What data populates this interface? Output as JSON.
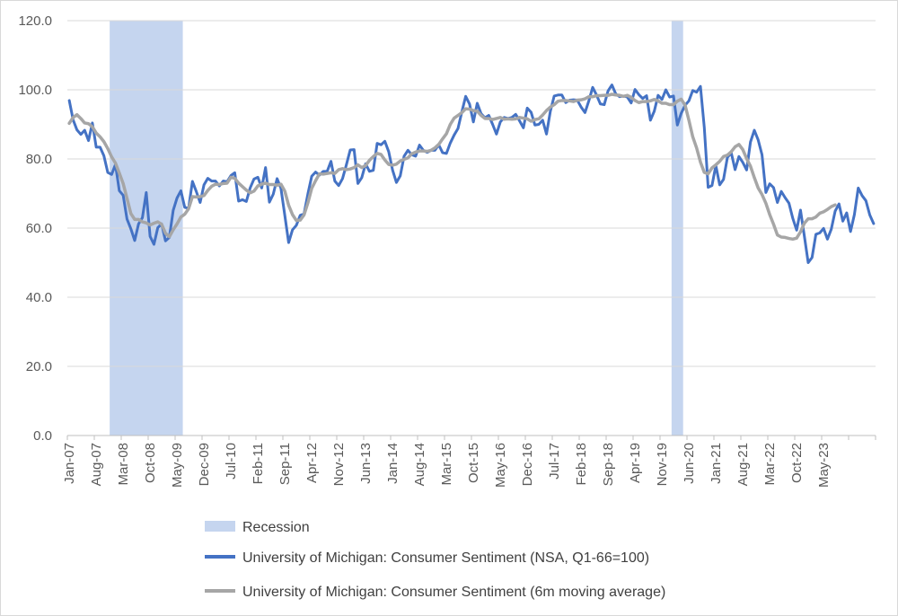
{
  "chart_data": {
    "type": "line",
    "title": "",
    "xlabel": "",
    "ylabel": "",
    "ylim": [
      0,
      120
    ],
    "yticks": [
      "0.0",
      "20.0",
      "40.0",
      "60.0",
      "80.0",
      "100.0",
      "120.0"
    ],
    "x_start": "Jan-07",
    "x_end": "Dec-23",
    "xticks": [
      "Jan-07",
      "Aug-07",
      "Mar-08",
      "Oct-08",
      "May-09",
      "Dec-09",
      "Jul-10",
      "Feb-11",
      "Sep-11",
      "Apr-12",
      "Nov-12",
      "Jun-13",
      "Jan-14",
      "Aug-14",
      "Mar-15",
      "Oct-15",
      "May-16",
      "Dec-16",
      "Jul-17",
      "Feb-18",
      "Sep-18",
      "Apr-19",
      "Nov-19",
      "Jun-20",
      "Jan-21",
      "Aug-21",
      "Mar-22",
      "Oct-22",
      "May-23"
    ],
    "grid": true,
    "legend_position": "bottom",
    "recessions": [
      {
        "start": "Dec-07",
        "end": "Jun-09"
      },
      {
        "start": "Feb-20",
        "end": "Apr-20"
      }
    ],
    "series": [
      {
        "name": "University of Michigan: Consumer Sentiment (NSA, Q1-66=100)",
        "color": "#4472c4",
        "values": [
          96.9,
          91.3,
          88.4,
          87.1,
          88.3,
          85.3,
          90.4,
          83.4,
          83.4,
          80.9,
          76.1,
          75.5,
          78.4,
          70.8,
          69.5,
          62.6,
          59.8,
          56.4,
          61.2,
          63.0,
          70.3,
          57.6,
          55.3,
          60.1,
          61.2,
          56.3,
          57.3,
          65.1,
          68.7,
          70.8,
          66.0,
          65.7,
          73.5,
          70.6,
          67.4,
          72.5,
          74.4,
          73.6,
          73.6,
          72.2,
          73.6,
          73.4,
          75.2,
          76.0,
          67.8,
          68.2,
          67.7,
          71.6,
          74.2,
          74.7,
          71.6,
          77.5,
          67.5,
          69.8,
          74.3,
          71.5,
          63.7,
          55.8,
          59.5,
          60.8,
          63.7,
          64.1,
          69.9,
          75.0,
          76.2,
          75.3,
          76.4,
          76.4,
          79.3,
          73.6,
          72.3,
          74.3,
          78.3,
          82.6,
          82.7,
          72.9,
          74.6,
          78.6,
          76.4,
          76.7,
          84.5,
          84.1,
          85.1,
          82.1,
          76.8,
          73.2,
          75.1,
          80.8,
          82.5,
          81.2,
          80.8,
          84.0,
          82.5,
          81.9,
          82.5,
          82.5,
          84.1,
          81.8,
          81.6,
          84.6,
          86.9,
          88.8,
          93.6,
          98.1,
          95.9,
          90.7,
          96.1,
          93.1,
          91.9,
          92.6,
          90.0,
          87.2,
          90.7,
          92.0,
          91.7,
          92.0,
          92.9,
          91.0,
          89.0,
          94.7,
          93.5,
          89.8,
          90.0,
          91.2,
          87.2,
          93.8,
          98.2,
          98.5,
          98.5,
          96.3,
          97.0,
          97.1,
          97.0,
          95.0,
          93.4,
          96.8,
          100.7,
          98.5,
          95.9,
          95.7,
          99.7,
          101.4,
          98.8,
          98.0,
          98.2,
          97.9,
          96.2,
          100.1,
          98.6,
          97.5,
          98.3,
          91.2,
          93.8,
          98.4,
          97.2,
          100.0,
          97.9,
          98.2,
          89.8,
          93.2,
          95.5,
          96.8,
          99.8,
          99.3,
          101.0,
          89.1,
          71.8,
          72.3,
          78.1,
          72.5,
          74.1,
          80.4,
          81.8,
          76.9,
          80.7,
          79.0,
          76.8,
          84.9,
          88.3,
          85.5,
          81.2,
          70.3,
          72.8,
          71.7,
          67.4,
          70.6,
          68.8,
          67.2,
          62.8,
          59.4,
          65.2,
          57.7,
          50.0,
          51.5,
          58.2,
          58.6,
          59.9,
          56.8,
          59.7,
          64.9,
          67.0,
          62.0,
          64.4,
          59.0,
          63.9,
          71.6,
          69.4,
          67.9,
          63.8,
          61.3
        ]
      },
      {
        "name": "University of Michigan: Consumer Sentiment (6m moving average)",
        "color": "#a6a6a6",
        "values": [
          90.3,
          92.0,
          92.8,
          91.7,
          90.4,
          90.2,
          89.3,
          87.5,
          86.4,
          85.0,
          83.0,
          80.6,
          78.8,
          75.9,
          72.9,
          68.6,
          64.2,
          62.5,
          62.5,
          61.8,
          61.5,
          60.9,
          61.4,
          61.8,
          61.1,
          58.5,
          57.5,
          59.5,
          61.2,
          63.2,
          64.0,
          65.6,
          69.1,
          69.0,
          69.1,
          69.4,
          70.9,
          72.1,
          72.7,
          72.6,
          72.9,
          73.0,
          74.7,
          74.4,
          73.0,
          72.0,
          71.0,
          70.2,
          70.7,
          72.2,
          72.7,
          73.0,
          72.6,
          72.6,
          72.4,
          72.7,
          70.7,
          66.6,
          63.9,
          62.2,
          62.3,
          63.8,
          67.3,
          71.5,
          73.7,
          75.7,
          75.6,
          75.8,
          76.0,
          75.8,
          76.9,
          77.2,
          76.9,
          77.1,
          77.5,
          78.3,
          77.5,
          78.1,
          79.6,
          80.7,
          81.6,
          81.3,
          79.7,
          78.4,
          78.2,
          78.5,
          79.4,
          79.9,
          80.3,
          81.5,
          82.0,
          82.3,
          82.3,
          82.2,
          82.5,
          83.2,
          84.2,
          85.8,
          87.3,
          90.0,
          91.8,
          92.6,
          93.4,
          94.5,
          94.4,
          94.0,
          93.8,
          92.6,
          91.7,
          91.7,
          91.4,
          91.7,
          92.0,
          91.5,
          91.6,
          91.5,
          91.6,
          92.0,
          91.8,
          91.6,
          90.9,
          91.4,
          91.6,
          92.7,
          94.0,
          95.0,
          95.7,
          96.7,
          96.9,
          96.9,
          96.8,
          96.6,
          97.0,
          97.1,
          97.4,
          98.0,
          98.0,
          98.3,
          98.3,
          98.4,
          98.4,
          98.7,
          98.5,
          98.4,
          98.1,
          98.4,
          97.8,
          96.9,
          96.3,
          96.6,
          96.6,
          96.8,
          97.2,
          96.8,
          96.1,
          96.1,
          95.7,
          95.7,
          96.7,
          97.3,
          95.6,
          91.2,
          86.4,
          83.2,
          79.1,
          76.1,
          75.7,
          77.4,
          78.3,
          79.3,
          80.7,
          81.1,
          82.1,
          83.5,
          84.2,
          82.7,
          80.1,
          77.9,
          74.6,
          71.6,
          69.7,
          67.2,
          63.9,
          61.1,
          58.0,
          57.4,
          57.3,
          57.0,
          56.8,
          57.1,
          58.9,
          61.4,
          62.7,
          62.7,
          63.2,
          64.3,
          64.7,
          65.4,
          66.2,
          66.7
        ]
      }
    ]
  },
  "legend": {
    "recession_label": "Recession",
    "recession_color": "#c5d5ef"
  }
}
